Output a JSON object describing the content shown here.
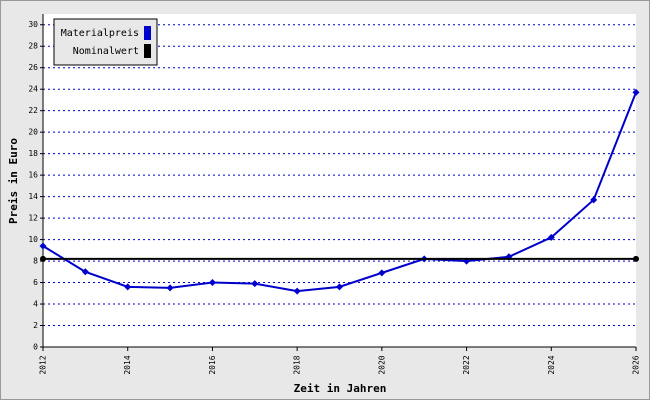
{
  "chart_data": {
    "type": "line",
    "x_label": "Zeit in Jahren",
    "y_label": "Preis in Euro",
    "xlim": [
      2012,
      2026
    ],
    "xticks": [
      2012,
      2014,
      2016,
      2018,
      2020,
      2022,
      2024,
      2026
    ],
    "ylim": [
      0,
      31
    ],
    "yticks": [
      0,
      2,
      4,
      6,
      8,
      10,
      12,
      14,
      16,
      18,
      20,
      22,
      24,
      26,
      28,
      30
    ],
    "grid": true,
    "legend": "top-left",
    "series": [
      {
        "name": "Materialpreis",
        "color": "#0000cc",
        "x": [
          2012,
          2013,
          2014,
          2015,
          2016,
          2017,
          2018,
          2019,
          2020,
          2021,
          2022,
          2023,
          2024,
          2025,
          2026
        ],
        "values": [
          9.4,
          7.0,
          5.6,
          5.5,
          6.0,
          5.9,
          5.2,
          5.6,
          6.9,
          8.2,
          8.0,
          8.4,
          10.2,
          13.7,
          23.7
        ]
      },
      {
        "name": "Nominalwert",
        "color": "#000000",
        "x": [
          2012,
          2026
        ],
        "values": [
          8.2,
          8.2
        ]
      }
    ]
  }
}
